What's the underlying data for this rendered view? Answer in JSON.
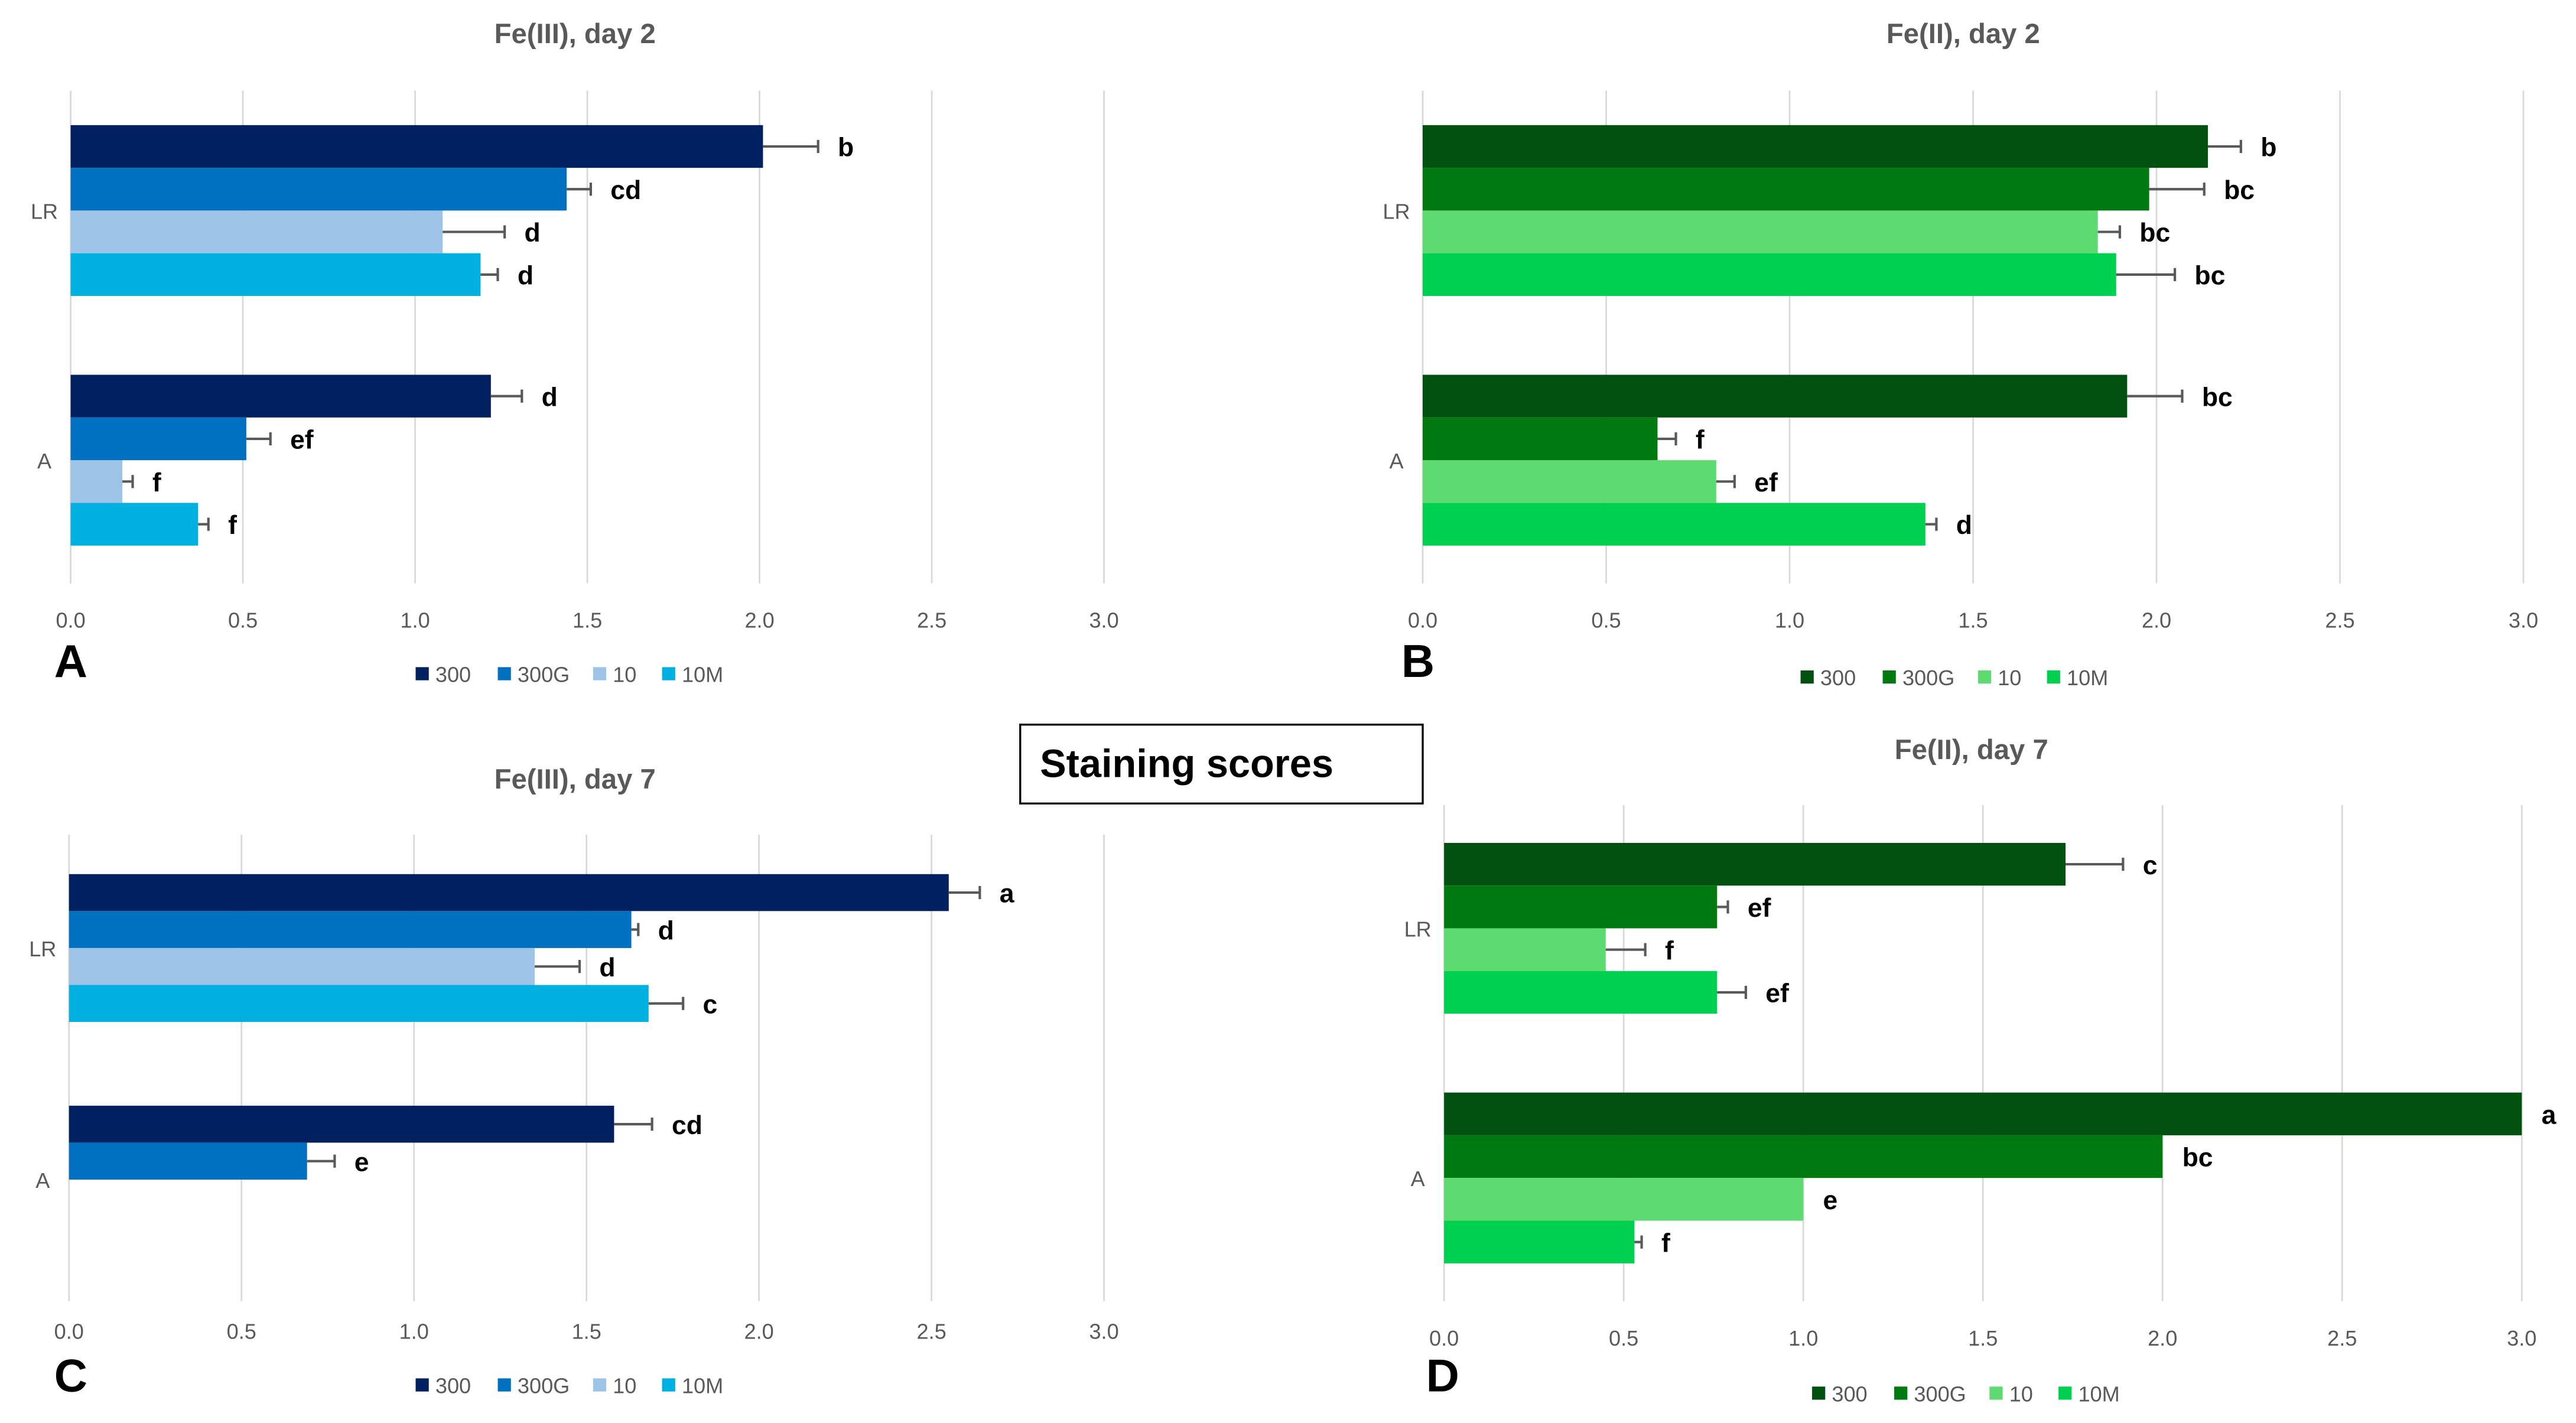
{
  "figure_label": "Staining scores",
  "chart_data": [
    {
      "type": "bar",
      "orientation": "horizontal",
      "panel": "A",
      "title": "Fe(III), day 2",
      "xlim": [
        0,
        3.0
      ],
      "ticks": [
        "0.0",
        "0.5",
        "1.0",
        "1.5",
        "2.0",
        "2.5",
        "3.0"
      ],
      "categories": [
        "LR",
        "A"
      ],
      "series": [
        {
          "name": "300",
          "color": "#002060",
          "values": [
            2.01,
            1.22
          ],
          "errors": [
            0.16,
            0.09
          ],
          "letters": [
            "b",
            "d"
          ]
        },
        {
          "name": "300G",
          "color": "#0070C0",
          "values": [
            1.44,
            0.51
          ],
          "errors": [
            0.07,
            0.07
          ],
          "letters": [
            "cd",
            "ef"
          ]
        },
        {
          "name": "10",
          "color": "#9DC3E6",
          "values": [
            1.08,
            0.15
          ],
          "errors": [
            0.18,
            0.03
          ],
          "letters": [
            "d",
            "f"
          ]
        },
        {
          "name": "10M",
          "color": "#00B0E0",
          "values": [
            1.19,
            0.37
          ],
          "errors": [
            0.05,
            0.03
          ],
          "letters": [
            "d",
            "f"
          ]
        }
      ]
    },
    {
      "type": "bar",
      "orientation": "horizontal",
      "panel": "B",
      "title": "Fe(II), day 2",
      "xlim": [
        0,
        3.0
      ],
      "ticks": [
        "0.0",
        "0.5",
        "1.0",
        "1.5",
        "2.0",
        "2.5",
        "3.0"
      ],
      "categories": [
        "LR",
        "A"
      ],
      "series": [
        {
          "name": "300",
          "color": "#005010",
          "values": [
            2.14,
            1.92
          ],
          "errors": [
            0.09,
            0.15
          ],
          "letters": [
            "b",
            "bc"
          ]
        },
        {
          "name": "300G",
          "color": "#007A10",
          "values": [
            1.98,
            0.64
          ],
          "errors": [
            0.15,
            0.05
          ],
          "letters": [
            "bc",
            "f"
          ]
        },
        {
          "name": "10",
          "color": "#5EDB70",
          "values": [
            1.84,
            0.8
          ],
          "errors": [
            0.06,
            0.05
          ],
          "letters": [
            "bc",
            "ef"
          ]
        },
        {
          "name": "10M",
          "color": "#00D050",
          "values": [
            1.89,
            1.37
          ],
          "errors": [
            0.16,
            0.03
          ],
          "letters": [
            "bc",
            "d"
          ]
        }
      ]
    },
    {
      "type": "bar",
      "orientation": "horizontal",
      "panel": "C",
      "title": "Fe(III), day 7",
      "xlim": [
        0,
        3.0
      ],
      "ticks": [
        "0.0",
        "0.5",
        "1.0",
        "1.5",
        "2.0",
        "2.5",
        "3.0"
      ],
      "categories": [
        "LR",
        "A"
      ],
      "series": [
        {
          "name": "300",
          "color": "#002060",
          "values": [
            2.55,
            1.58
          ],
          "errors": [
            0.09,
            0.11
          ],
          "letters": [
            "a",
            "cd"
          ]
        },
        {
          "name": "300G",
          "color": "#0070C0",
          "values": [
            1.63,
            0.69
          ],
          "errors": [
            0.02,
            0.08
          ],
          "letters": [
            "d",
            "e"
          ]
        },
        {
          "name": "10",
          "color": "#9DC3E6",
          "values": [
            1.35,
            0
          ],
          "errors": [
            0.13,
            0
          ],
          "letters": [
            "d",
            ""
          ]
        },
        {
          "name": "10M",
          "color": "#00B0E0",
          "values": [
            1.68,
            0
          ],
          "errors": [
            0.1,
            0
          ],
          "letters": [
            "c",
            ""
          ]
        }
      ]
    },
    {
      "type": "bar",
      "orientation": "horizontal",
      "panel": "D",
      "title": "Fe(II), day 7",
      "xlim": [
        0,
        3.0
      ],
      "ticks": [
        "0.0",
        "0.5",
        "1.0",
        "1.5",
        "2.0",
        "2.5",
        "3.0"
      ],
      "categories": [
        "LR",
        "A"
      ],
      "series": [
        {
          "name": "300",
          "color": "#005010",
          "values": [
            1.73,
            3.0
          ],
          "errors": [
            0.16,
            0
          ],
          "letters": [
            "c",
            "a"
          ]
        },
        {
          "name": "300G",
          "color": "#007A10",
          "values": [
            0.76,
            2.0
          ],
          "errors": [
            0.03,
            0
          ],
          "letters": [
            "ef",
            "bc"
          ]
        },
        {
          "name": "10",
          "color": "#5EDB70",
          "values": [
            0.45,
            1.0
          ],
          "errors": [
            0.11,
            0
          ],
          "letters": [
            "f",
            "e"
          ]
        },
        {
          "name": "10M",
          "color": "#00D050",
          "values": [
            0.76,
            0.53
          ],
          "errors": [
            0.08,
            0.02
          ],
          "letters": [
            "ef",
            "f"
          ]
        }
      ]
    }
  ]
}
